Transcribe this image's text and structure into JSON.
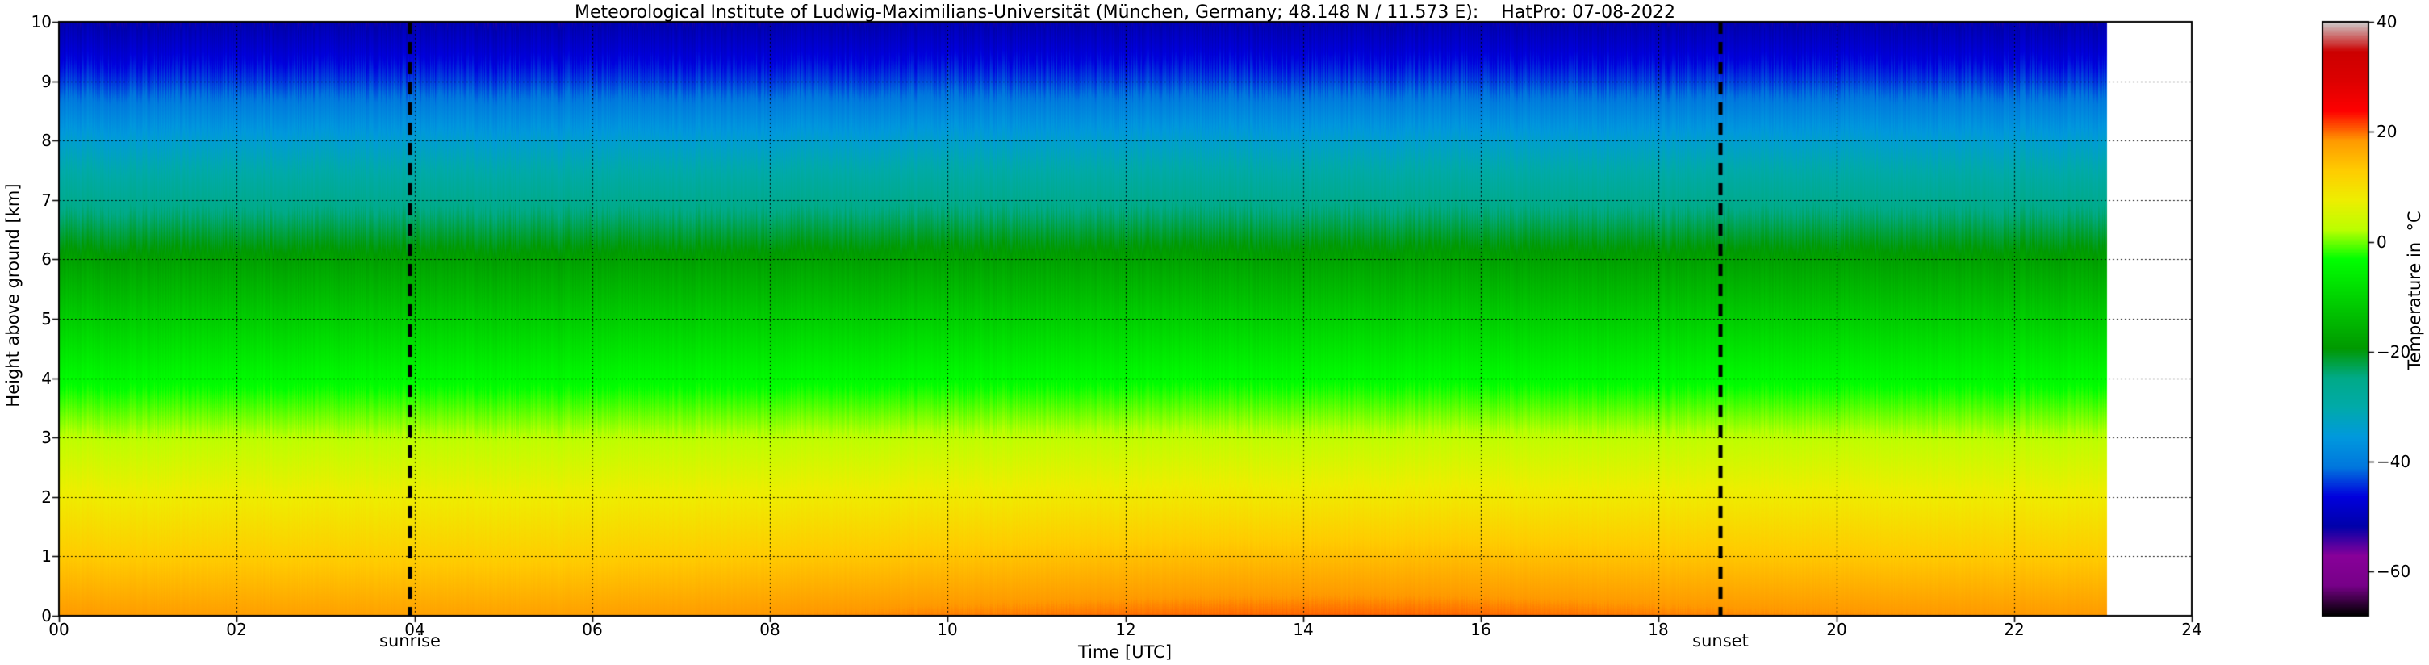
{
  "chart_data": {
    "type": "heatmap",
    "title": "Meteorological Institute of Ludwig-Maximilians-Universität (München, Germany; 48.148 N / 11.573 E):    HatPro: 07-08-2022",
    "xlabel": "Time [UTC]",
    "ylabel": "Height above ground [km]",
    "xlim": [
      0,
      24
    ],
    "ylim": [
      0,
      10
    ],
    "grid": "dotted",
    "data_time_end": 23.05,
    "x_ticks": [
      "00",
      "02",
      "04",
      "06",
      "08",
      "10",
      "12",
      "14",
      "16",
      "18",
      "20",
      "22",
      "24"
    ],
    "x_tick_values": [
      0,
      2,
      4,
      6,
      8,
      10,
      12,
      14,
      16,
      18,
      20,
      22,
      24
    ],
    "y_ticks": [
      "0",
      "1",
      "2",
      "3",
      "4",
      "5",
      "6",
      "7",
      "8",
      "9",
      "10"
    ],
    "y_tick_values": [
      0,
      1,
      2,
      3,
      4,
      5,
      6,
      7,
      8,
      9,
      10
    ],
    "times": [
      0,
      1,
      2,
      3,
      4,
      5,
      6,
      7,
      8,
      9,
      10,
      11,
      12,
      13,
      14,
      15,
      16,
      17,
      18,
      19,
      20,
      21,
      22,
      23
    ],
    "heights": [
      0,
      1,
      2,
      3,
      4,
      5,
      6,
      7,
      8,
      9,
      10
    ],
    "values": [
      [
        18.3,
        18.1,
        17.9,
        17.7,
        17.6,
        17.6,
        17.8,
        18.1,
        18.5,
        18.9,
        19.3,
        19.6,
        19.9,
        20.1,
        20.3,
        20.3,
        20.1,
        19.8,
        19.4,
        19.0,
        18.8,
        18.6,
        18.4,
        18.3
      ],
      [
        13.1,
        12.9,
        12.8,
        12.6,
        12.5,
        12.5,
        12.6,
        12.9,
        13.2,
        13.5,
        13.8,
        14.1,
        14.3,
        14.5,
        14.6,
        14.6,
        14.5,
        14.2,
        13.9,
        13.6,
        13.4,
        13.2,
        13.1,
        13.0
      ],
      [
        8.0,
        7.9,
        7.8,
        7.7,
        7.7,
        7.7,
        7.8,
        7.9,
        8.0,
        8.2,
        8.3,
        8.4,
        8.5,
        8.6,
        8.6,
        8.6,
        8.5,
        8.4,
        8.3,
        8.2,
        8.1,
        8.0,
        7.9,
        7.9
      ],
      [
        2.4,
        2.3,
        2.3,
        2.2,
        2.2,
        2.2,
        2.3,
        2.3,
        2.4,
        2.5,
        2.5,
        2.6,
        2.7,
        2.7,
        2.7,
        2.7,
        2.7,
        2.6,
        2.5,
        2.5,
        2.4,
        2.4,
        2.3,
        2.3
      ],
      [
        -4.1,
        -4.1,
        -4.2,
        -4.2,
        -4.2,
        -4.2,
        -4.2,
        -4.1,
        -4.1,
        -4.0,
        -4.0,
        -3.9,
        -3.9,
        -3.8,
        -3.8,
        -3.8,
        -3.9,
        -3.9,
        -4.0,
        -4.0,
        -4.1,
        -4.1,
        -4.1,
        -4.2
      ],
      [
        -11.1,
        -11.1,
        -11.2,
        -11.2,
        -11.2,
        -11.2,
        -11.1,
        -11.1,
        -11.0,
        -11.0,
        -10.9,
        -10.9,
        -10.8,
        -10.8,
        -10.8,
        -10.8,
        -10.9,
        -10.9,
        -11.0,
        -11.0,
        -11.1,
        -11.1,
        -11.1,
        -11.2
      ],
      [
        -18.2,
        -18.2,
        -18.3,
        -18.3,
        -18.3,
        -18.3,
        -18.2,
        -18.2,
        -18.1,
        -18.1,
        -18.0,
        -18.0,
        -17.9,
        -17.9,
        -17.9,
        -17.9,
        -18.0,
        -18.0,
        -18.1,
        -18.1,
        -18.2,
        -18.2,
        -18.2,
        -18.3
      ],
      [
        -26.1,
        -26.1,
        -26.2,
        -26.2,
        -26.2,
        -26.2,
        -26.1,
        -26.1,
        -26.0,
        -26.0,
        -25.9,
        -25.9,
        -25.8,
        -25.8,
        -25.8,
        -25.8,
        -25.9,
        -25.9,
        -26.0,
        -26.0,
        -26.1,
        -26.1,
        -26.1,
        -26.2
      ],
      [
        -34.1,
        -34.1,
        -34.2,
        -34.2,
        -34.2,
        -34.2,
        -34.1,
        -34.1,
        -34.0,
        -34.0,
        -33.9,
        -33.9,
        -33.8,
        -33.8,
        -33.8,
        -33.8,
        -33.9,
        -33.9,
        -34.0,
        -34.0,
        -34.1,
        -34.1,
        -34.1,
        -34.2
      ],
      [
        -43.6,
        -43.6,
        -43.7,
        -43.7,
        -43.7,
        -43.7,
        -43.6,
        -43.6,
        -43.5,
        -43.5,
        -43.4,
        -43.4,
        -43.3,
        -43.3,
        -43.3,
        -43.3,
        -43.4,
        -43.4,
        -43.5,
        -43.5,
        -43.6,
        -43.6,
        -43.6,
        -43.7
      ],
      [
        -51.6,
        -51.6,
        -51.7,
        -51.7,
        -51.7,
        -51.7,
        -51.6,
        -51.6,
        -51.5,
        -51.5,
        -51.4,
        -51.4,
        -51.3,
        -51.3,
        -51.3,
        -51.3,
        -51.4,
        -51.4,
        -51.5,
        -51.5,
        -51.6,
        -51.6,
        -51.6,
        -51.7
      ]
    ],
    "annotations": [
      {
        "label": "sunrise",
        "time": 3.95
      },
      {
        "label": "sunset",
        "time": 18.7
      }
    ],
    "colorbar": {
      "label": "Temperature in  °C",
      "min": -68,
      "max": 40,
      "ticks": [
        {
          "value": 40,
          "label": "40"
        },
        {
          "value": 20,
          "label": "20"
        },
        {
          "value": 0,
          "label": "0"
        },
        {
          "value": -20,
          "label": "−20"
        },
        {
          "value": -40,
          "label": "−40"
        },
        {
          "value": -60,
          "label": "−60"
        }
      ],
      "colormap": [
        [
          0.0,
          "#000000"
        ],
        [
          0.05,
          "#770088"
        ],
        [
          0.1,
          "#880099"
        ],
        [
          0.15,
          "#0000aa"
        ],
        [
          0.2,
          "#0000dd"
        ],
        [
          0.25,
          "#0077dd"
        ],
        [
          0.3,
          "#0099dd"
        ],
        [
          0.35,
          "#00aaaa"
        ],
        [
          0.4,
          "#00aa88"
        ],
        [
          0.45,
          "#009900"
        ],
        [
          0.5,
          "#00bb00"
        ],
        [
          0.55,
          "#00dd00"
        ],
        [
          0.6,
          "#00ff00"
        ],
        [
          0.65,
          "#bbff00"
        ],
        [
          0.7,
          "#eeee00"
        ],
        [
          0.75,
          "#ffcc00"
        ],
        [
          0.8,
          "#ff9900"
        ],
        [
          0.85,
          "#ff0000"
        ],
        [
          0.9,
          "#dd0000"
        ],
        [
          0.95,
          "#cc0000"
        ],
        [
          1.0,
          "#cccccc"
        ]
      ]
    }
  }
}
